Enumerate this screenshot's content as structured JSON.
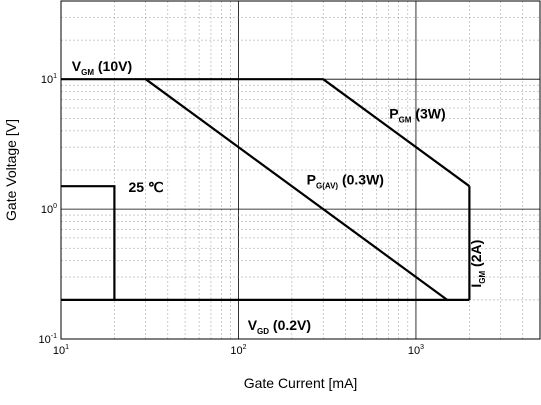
{
  "chart_data": {
    "type": "line",
    "xlabel": "Gate Current [mA]",
    "ylabel": "Gate Voltage [V]",
    "x_scale": "log",
    "y_scale": "log",
    "xlim": [
      10,
      5000
    ],
    "ylim": [
      0.1,
      40
    ],
    "grid": true,
    "x_ticks": [
      {
        "value": 10,
        "base": "10",
        "exp": "1"
      },
      {
        "value": 100,
        "base": "10",
        "exp": "2"
      },
      {
        "value": 1000,
        "base": "10",
        "exp": "3"
      }
    ],
    "y_ticks": [
      {
        "value": 0.1,
        "base": "10",
        "exp": "-1"
      },
      {
        "value": 1,
        "base": "10",
        "exp": "0"
      },
      {
        "value": 10,
        "base": "10",
        "exp": "1"
      }
    ],
    "series": [
      {
        "id": "vgm",
        "points": [
          [
            10,
            10
          ],
          [
            300,
            10
          ]
        ]
      },
      {
        "id": "pgm",
        "points": [
          [
            300,
            10
          ],
          [
            2000,
            1.5
          ]
        ]
      },
      {
        "id": "igm",
        "points": [
          [
            2000,
            1.5
          ],
          [
            2000,
            0.2
          ]
        ]
      },
      {
        "id": "vgd",
        "points": [
          [
            10,
            0.2
          ],
          [
            2000,
            0.2
          ]
        ]
      },
      {
        "id": "pgav",
        "points": [
          [
            30,
            10
          ],
          [
            1500,
            0.2
          ]
        ]
      },
      {
        "id": "t25",
        "points": [
          [
            10,
            1.5
          ],
          [
            20,
            1.5
          ],
          [
            20,
            0.2
          ]
        ]
      }
    ],
    "annotations": [
      {
        "id": "vgm",
        "main": "V",
        "sub": "GM",
        "rest": " (10V)",
        "x": 11.5,
        "y": 10,
        "dy": -8,
        "anchor": "start",
        "rotate": false
      },
      {
        "id": "pgm",
        "main": "P",
        "sub": "GM",
        "rest": " (3W)",
        "x": 1020,
        "y": 5,
        "dy": 0,
        "anchor": "middle",
        "rotate": false
      },
      {
        "id": "pgav",
        "main": "P",
        "sub": "G(AV)",
        "rest": " (0.3W)",
        "x": 400,
        "y": 1.55,
        "dy": 0,
        "anchor": "middle",
        "rotate": false
      },
      {
        "id": "t25",
        "main": "25 ℃",
        "sub": "",
        "rest": "",
        "x": 24,
        "y": 1.35,
        "dy": 0,
        "anchor": "start",
        "rotate": false
      },
      {
        "id": "igm",
        "main": "I",
        "sub": "GM",
        "rest": " (2A)",
        "x": 2330,
        "y": 0.38,
        "dy": 0,
        "anchor": "middle",
        "rotate": true
      },
      {
        "id": "vgd",
        "main": "V",
        "sub": "GD",
        "rest": " (0.2V)",
        "x": 170,
        "y": 0.2,
        "dy": 30,
        "anchor": "middle",
        "rotate": false
      }
    ]
  }
}
